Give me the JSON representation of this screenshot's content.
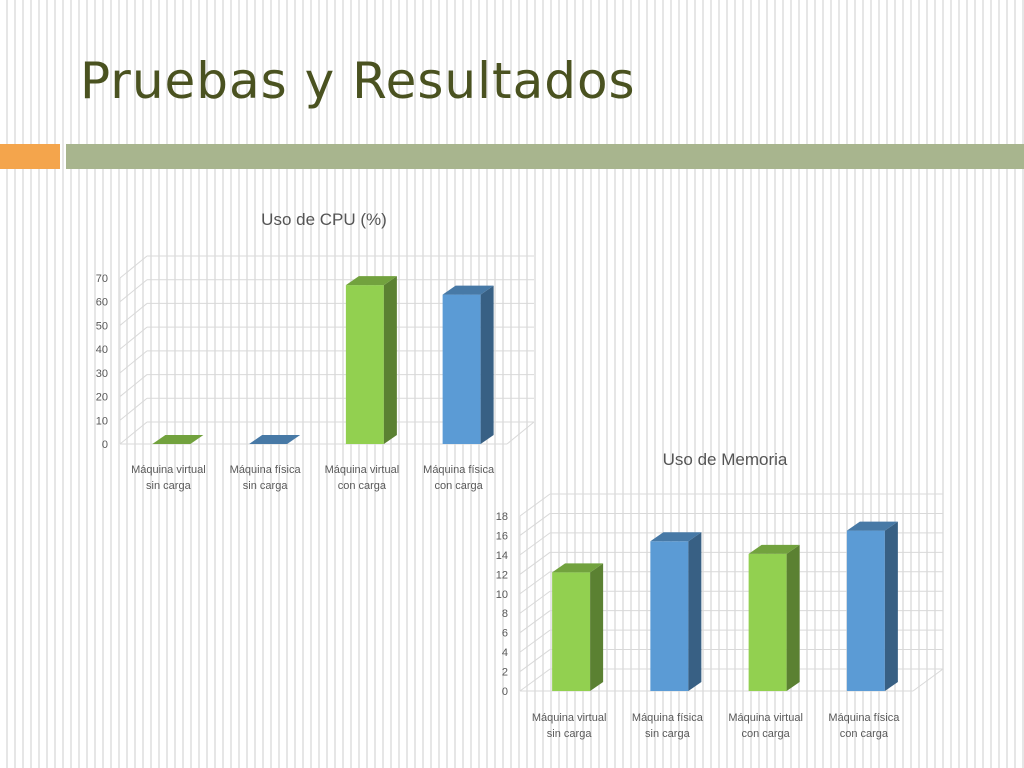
{
  "slide": {
    "title": "Pruebas y Resultados",
    "accent_colors": {
      "orange": "#f4a54c",
      "green": "#a8b58e"
    }
  },
  "chart_data": [
    {
      "type": "bar",
      "style": "3d-column",
      "title": "Uso de CPU (%)",
      "xlabel": "",
      "ylabel": "",
      "categories": [
        "Máquina virtual sin carga",
        "Máquina física sin carga",
        "Máquina virtual con carga",
        "Máquina física con carga"
      ],
      "category_lines": [
        [
          "Máquina virtual",
          "sin carga"
        ],
        [
          "Máquina física",
          "sin carga"
        ],
        [
          "Máquina virtual",
          "con carga"
        ],
        [
          "Máquina física",
          "con carga"
        ]
      ],
      "values": [
        0,
        0,
        67,
        63
      ],
      "bar_colors": [
        "#92d050",
        "#5b9bd5",
        "#92d050",
        "#5b9bd5"
      ],
      "ylim": [
        0,
        70
      ],
      "yticks": [
        0,
        10,
        20,
        30,
        40,
        50,
        60,
        70
      ],
      "grid": true,
      "legend": "none"
    },
    {
      "type": "bar",
      "style": "3d-column",
      "title": "Uso de Memoria",
      "xlabel": "",
      "ylabel": "",
      "categories": [
        "Máquina virtual sin carga",
        "Máquina física sin carga",
        "Máquina virtual con carga",
        "Máquina física con carga"
      ],
      "category_lines": [
        [
          "Máquina virtual",
          "sin carga"
        ],
        [
          "Máquina física",
          "sin carga"
        ],
        [
          "Máquina virtual",
          "con carga"
        ],
        [
          "Máquina física",
          "con carga"
        ]
      ],
      "values": [
        12.2,
        15.4,
        14.1,
        16.5
      ],
      "bar_colors": [
        "#92d050",
        "#5b9bd5",
        "#92d050",
        "#5b9bd5"
      ],
      "ylim": [
        0,
        18
      ],
      "yticks": [
        0,
        2,
        4,
        6,
        8,
        10,
        12,
        14,
        16,
        18
      ],
      "grid": true,
      "legend": "none"
    }
  ]
}
